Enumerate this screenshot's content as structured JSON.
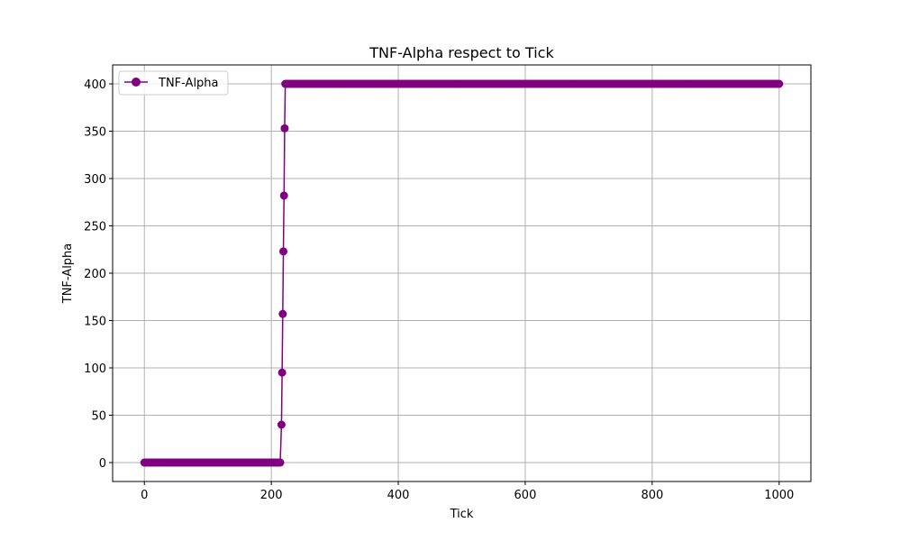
{
  "chart_data": {
    "type": "line",
    "title": "TNF-Alpha respect to Tick",
    "xlabel": "Tick",
    "ylabel": "TNF-Alpha",
    "xlim": [
      -50,
      1050
    ],
    "ylim": [
      -20,
      420
    ],
    "xticks": [
      0,
      200,
      400,
      600,
      800,
      1000
    ],
    "yticks": [
      0,
      50,
      100,
      150,
      200,
      250,
      300,
      350,
      400
    ],
    "grid": true,
    "legend_position": "upper left",
    "series": [
      {
        "name": "TNF-Alpha",
        "color": "#800080",
        "marker": "circle",
        "segments": [
          {
            "x_start": 0,
            "x_end": 214,
            "step": 2,
            "y": 0
          },
          {
            "points": [
              [
                216,
                40
              ],
              [
                217,
                95
              ],
              [
                218,
                157
              ],
              [
                219,
                223
              ],
              [
                220,
                282
              ],
              [
                221,
                353
              ]
            ]
          },
          {
            "x_start": 222,
            "x_end": 1000,
            "step": 2,
            "y": 400
          }
        ]
      }
    ]
  }
}
